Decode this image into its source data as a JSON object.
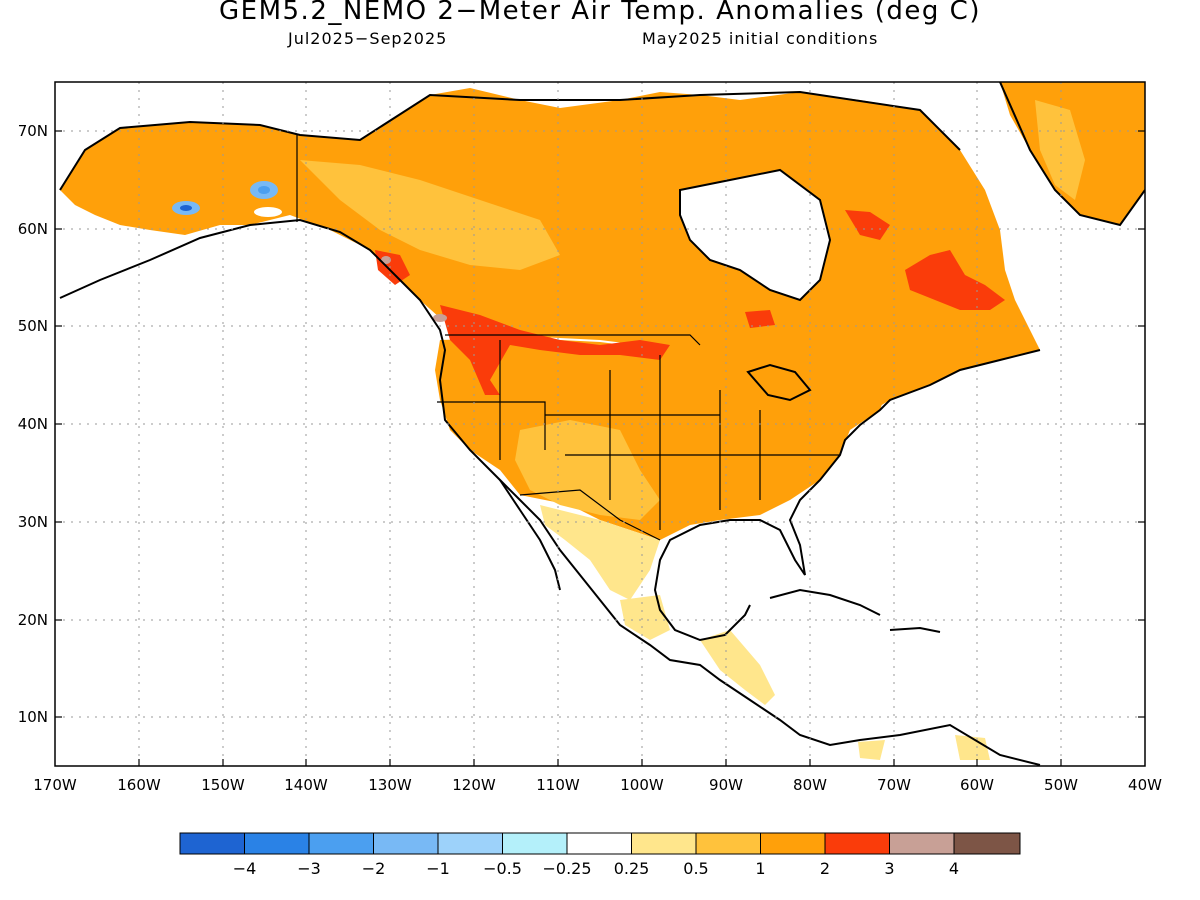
{
  "title": "GEM5.2_NEMO 2−Meter Air Temp. Anomalies (deg C)",
  "subtitle_period": "Jul2025−Sep2025",
  "subtitle_ic": "May2025 initial conditions",
  "lat_labels": [
    "70N",
    "60N",
    "50N",
    "40N",
    "30N",
    "20N",
    "10N"
  ],
  "lon_labels": [
    "170W",
    "160W",
    "150W",
    "140W",
    "130W",
    "120W",
    "110W",
    "100W",
    "90W",
    "80W",
    "70W",
    "60W",
    "50W",
    "40W"
  ],
  "colorbar": {
    "colors": [
      "#1e64d2",
      "#2a82e6",
      "#4b9ff0",
      "#78b9f5",
      "#9dd2fa",
      "#b4f0fa",
      "#ffffff",
      "#ffe68c",
      "#ffc23c",
      "#ffa00a",
      "#fa3c0a",
      "#c8a096",
      "#7d5546"
    ],
    "labels": [
      "−4",
      "−3",
      "−2",
      "−1",
      "−0.5",
      "−0.25",
      "0.25",
      "0.5",
      "1",
      "2",
      "3",
      "4"
    ]
  },
  "legend_classes": {
    "neg4": "#1e64d2",
    "neg1": "#78b9f5",
    "neg05": "#9dd2fa",
    "neutral": "#ffffff",
    "p025": "#ffe68c",
    "p05": "#ffc23c",
    "p1": "#ffa00a",
    "p2": "#fa3c0a",
    "p3": "#c8a096"
  }
}
